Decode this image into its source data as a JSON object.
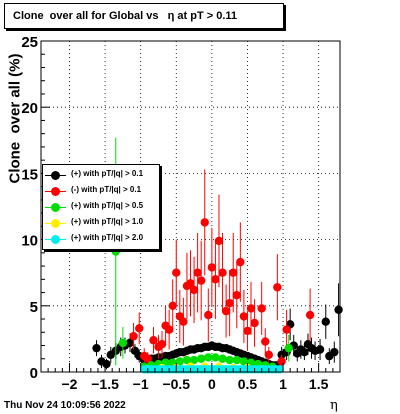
{
  "title": "Clone  over all for Global vs   η at pT > 0.11",
  "timestamp": "Thu Nov 24 10:09:56 2022",
  "chart_data": {
    "type": "scatter",
    "xlabel": "η",
    "ylabel": "Clone  over all (%)",
    "xlim": [
      -2.4,
      1.8
    ],
    "ylim": [
      0,
      25
    ],
    "xticks": [
      -2,
      -1.5,
      -1,
      -0.5,
      0,
      0.5,
      1,
      1.5
    ],
    "xtick_labels": [
      "−2",
      "−1.5",
      "−1",
      "−0.5",
      "0",
      "0.5",
      "1",
      "1.5"
    ],
    "yticks": [
      0,
      5,
      10,
      15,
      20,
      25
    ],
    "ytick_labels": [
      "0",
      "5",
      "10",
      "15",
      "20",
      "25"
    ],
    "grid": true,
    "legend_position": "left-middle",
    "series": [
      {
        "name": "(+) with pT/|q| > 0.1",
        "color": "#000000",
        "points": [
          {
            "x": -1.62,
            "y": 1.8,
            "err": 0.6
          },
          {
            "x": -1.55,
            "y": 0.8,
            "err": 0.5
          },
          {
            "x": -1.48,
            "y": 0.6,
            "err": 0.4
          },
          {
            "x": -1.42,
            "y": 1.3,
            "err": 0.6
          },
          {
            "x": -1.35,
            "y": 1.6,
            "err": 0.6
          },
          {
            "x": -1.28,
            "y": 1.9,
            "err": 0.7
          },
          {
            "x": -1.22,
            "y": 2.0,
            "err": 0.6
          },
          {
            "x": -1.15,
            "y": 2.2,
            "err": 0.7
          },
          {
            "x": -1.08,
            "y": 1.6,
            "err": 0.5
          },
          {
            "x": -1.02,
            "y": 1.2,
            "err": 0.5
          },
          {
            "x": -0.95,
            "y": 0.9,
            "err": 0.3
          },
          {
            "x": -0.9,
            "y": 0.9,
            "err": 0.3
          },
          {
            "x": -0.85,
            "y": 1.0,
            "err": 0.3
          },
          {
            "x": -0.8,
            "y": 1.0,
            "err": 0.3
          },
          {
            "x": -0.75,
            "y": 1.1,
            "err": 0.3
          },
          {
            "x": -0.7,
            "y": 1.1,
            "err": 0.3
          },
          {
            "x": -0.65,
            "y": 1.2,
            "err": 0.3
          },
          {
            "x": -0.6,
            "y": 1.2,
            "err": 0.3
          },
          {
            "x": -0.55,
            "y": 1.3,
            "err": 0.3
          },
          {
            "x": -0.5,
            "y": 1.4,
            "err": 0.3
          },
          {
            "x": -0.45,
            "y": 1.5,
            "err": 0.3
          },
          {
            "x": -0.4,
            "y": 1.5,
            "err": 0.3
          },
          {
            "x": -0.35,
            "y": 1.6,
            "err": 0.3
          },
          {
            "x": -0.3,
            "y": 1.7,
            "err": 0.3
          },
          {
            "x": -0.25,
            "y": 1.7,
            "err": 0.3
          },
          {
            "x": -0.2,
            "y": 1.8,
            "err": 0.3
          },
          {
            "x": -0.15,
            "y": 1.8,
            "err": 0.3
          },
          {
            "x": -0.1,
            "y": 1.9,
            "err": 0.3
          },
          {
            "x": -0.05,
            "y": 1.9,
            "err": 0.3
          },
          {
            "x": 0.0,
            "y": 2.0,
            "err": 0.3
          },
          {
            "x": 0.05,
            "y": 1.9,
            "err": 0.3
          },
          {
            "x": 0.1,
            "y": 1.9,
            "err": 0.3
          },
          {
            "x": 0.15,
            "y": 1.8,
            "err": 0.3
          },
          {
            "x": 0.2,
            "y": 1.8,
            "err": 0.3
          },
          {
            "x": 0.25,
            "y": 1.7,
            "err": 0.3
          },
          {
            "x": 0.3,
            "y": 1.6,
            "err": 0.3
          },
          {
            "x": 0.35,
            "y": 1.5,
            "err": 0.3
          },
          {
            "x": 0.4,
            "y": 1.4,
            "err": 0.3
          },
          {
            "x": 0.45,
            "y": 1.3,
            "err": 0.3
          },
          {
            "x": 0.5,
            "y": 1.2,
            "err": 0.3
          },
          {
            "x": 0.55,
            "y": 1.1,
            "err": 0.3
          },
          {
            "x": 0.6,
            "y": 1.0,
            "err": 0.3
          },
          {
            "x": 0.65,
            "y": 0.9,
            "err": 0.3
          },
          {
            "x": 0.7,
            "y": 0.8,
            "err": 0.3
          },
          {
            "x": 0.75,
            "y": 0.7,
            "err": 0.3
          },
          {
            "x": 0.8,
            "y": 0.6,
            "err": 0.3
          },
          {
            "x": 0.85,
            "y": 0.5,
            "err": 0.3
          },
          {
            "x": 0.9,
            "y": 0.5,
            "err": 0.3
          },
          {
            "x": 0.98,
            "y": 1.3,
            "err": 0.6
          },
          {
            "x": 1.05,
            "y": 1.5,
            "err": 0.6
          },
          {
            "x": 1.1,
            "y": 3.6,
            "err": 1.2
          },
          {
            "x": 1.15,
            "y": 2.0,
            "err": 0.8
          },
          {
            "x": 1.2,
            "y": 1.4,
            "err": 0.6
          },
          {
            "x": 1.25,
            "y": 1.7,
            "err": 0.7
          },
          {
            "x": 1.3,
            "y": 1.5,
            "err": 0.6
          },
          {
            "x": 1.35,
            "y": 2.1,
            "err": 0.8
          },
          {
            "x": 1.4,
            "y": 1.8,
            "err": 0.8
          },
          {
            "x": 1.45,
            "y": 1.6,
            "err": 0.7
          },
          {
            "x": 1.52,
            "y": 1.7,
            "err": 0.8
          },
          {
            "x": 1.6,
            "y": 3.8,
            "err": 1.3
          },
          {
            "x": 1.65,
            "y": 1.2,
            "err": 0.6
          },
          {
            "x": 1.72,
            "y": 1.5,
            "err": 0.8
          },
          {
            "x": 1.78,
            "y": 4.7,
            "err": 2.0
          }
        ]
      },
      {
        "name": "(-) with pT/|q| > 0.1",
        "color": "#ff0000",
        "points": [
          {
            "x": -1.1,
            "y": 2.7,
            "err": 1.0
          },
          {
            "x": -1.02,
            "y": 3.3,
            "err": 1.2
          },
          {
            "x": -0.95,
            "y": 1.2,
            "err": 0.6
          },
          {
            "x": -0.9,
            "y": 1.0,
            "err": 0.5
          },
          {
            "x": -0.82,
            "y": 2.4,
            "err": 1.0
          },
          {
            "x": -0.75,
            "y": 1.9,
            "err": 0.9
          },
          {
            "x": -0.7,
            "y": 2.1,
            "err": 1.0
          },
          {
            "x": -0.65,
            "y": 3.5,
            "err": 1.5
          },
          {
            "x": -0.6,
            "y": 3.2,
            "err": 1.5
          },
          {
            "x": -0.55,
            "y": 5.0,
            "err": 2.0
          },
          {
            "x": -0.5,
            "y": 7.5,
            "err": 2.5
          },
          {
            "x": -0.45,
            "y": 4.2,
            "err": 2.0
          },
          {
            "x": -0.4,
            "y": 3.8,
            "err": 1.8
          },
          {
            "x": -0.35,
            "y": 6.5,
            "err": 2.5
          },
          {
            "x": -0.3,
            "y": 6.7,
            "err": 2.5
          },
          {
            "x": -0.25,
            "y": 6.2,
            "err": 2.5
          },
          {
            "x": -0.2,
            "y": 7.5,
            "err": 3.0
          },
          {
            "x": -0.15,
            "y": 6.9,
            "err": 3.0
          },
          {
            "x": -0.1,
            "y": 11.3,
            "err": 4.0
          },
          {
            "x": -0.05,
            "y": 4.3,
            "err": 2.0
          },
          {
            "x": 0.0,
            "y": 7.9,
            "err": 3.0
          },
          {
            "x": 0.05,
            "y": 7.0,
            "err": 3.0
          },
          {
            "x": 0.1,
            "y": 9.9,
            "err": 3.5
          },
          {
            "x": 0.15,
            "y": 7.5,
            "err": 3.0
          },
          {
            "x": 0.2,
            "y": 4.6,
            "err": 2.0
          },
          {
            "x": 0.25,
            "y": 5.2,
            "err": 2.5
          },
          {
            "x": 0.3,
            "y": 7.5,
            "err": 3.0
          },
          {
            "x": 0.35,
            "y": 5.8,
            "err": 2.5
          },
          {
            "x": 0.4,
            "y": 8.3,
            "err": 3.0
          },
          {
            "x": 0.45,
            "y": 4.2,
            "err": 2.0
          },
          {
            "x": 0.5,
            "y": 3.1,
            "err": 1.5
          },
          {
            "x": 0.55,
            "y": 4.8,
            "err": 2.0
          },
          {
            "x": 0.6,
            "y": 3.7,
            "err": 1.8
          },
          {
            "x": 0.7,
            "y": 4.8,
            "err": 2.0
          },
          {
            "x": 0.75,
            "y": 2.3,
            "err": 1.0
          },
          {
            "x": 0.8,
            "y": 1.3,
            "err": 0.6
          },
          {
            "x": 0.92,
            "y": 6.4,
            "err": 2.5
          },
          {
            "x": 0.98,
            "y": 0.8,
            "err": 0.5
          },
          {
            "x": 1.05,
            "y": 3.2,
            "err": 1.5
          },
          {
            "x": 1.38,
            "y": 4.3,
            "err": 2.0
          }
        ]
      },
      {
        "name": "(+) with pT/|q| > 0.5",
        "color": "#00dd00",
        "points": [
          {
            "x": -1.35,
            "y": 9.1,
            "err": 8.6
          },
          {
            "x": -1.25,
            "y": 2.2,
            "err": 1.2
          },
          {
            "x": -0.95,
            "y": 0.4,
            "err": 0.2
          },
          {
            "x": -0.85,
            "y": 0.5,
            "err": 0.2
          },
          {
            "x": -0.75,
            "y": 0.6,
            "err": 0.2
          },
          {
            "x": -0.65,
            "y": 0.7,
            "err": 0.2
          },
          {
            "x": -0.55,
            "y": 0.7,
            "err": 0.2
          },
          {
            "x": -0.45,
            "y": 0.8,
            "err": 0.2
          },
          {
            "x": -0.35,
            "y": 0.9,
            "err": 0.2
          },
          {
            "x": -0.25,
            "y": 0.9,
            "err": 0.2
          },
          {
            "x": -0.15,
            "y": 1.0,
            "err": 0.2
          },
          {
            "x": -0.05,
            "y": 1.1,
            "err": 0.2
          },
          {
            "x": 0.05,
            "y": 1.1,
            "err": 0.2
          },
          {
            "x": 0.15,
            "y": 1.0,
            "err": 0.2
          },
          {
            "x": 0.25,
            "y": 0.9,
            "err": 0.2
          },
          {
            "x": 0.35,
            "y": 0.9,
            "err": 0.2
          },
          {
            "x": 0.45,
            "y": 0.8,
            "err": 0.2
          },
          {
            "x": 0.55,
            "y": 0.7,
            "err": 0.2
          },
          {
            "x": 0.65,
            "y": 0.6,
            "err": 0.2
          },
          {
            "x": 0.75,
            "y": 0.5,
            "err": 0.2
          },
          {
            "x": 0.85,
            "y": 0.4,
            "err": 0.2
          },
          {
            "x": 1.08,
            "y": 1.8,
            "err": 1.0
          }
        ]
      },
      {
        "name": "(+) with pT/|q| > 1.0",
        "color": "#ffee00",
        "points": [
          {
            "x": -0.9,
            "y": 0.2,
            "err": 0.1
          },
          {
            "x": -0.7,
            "y": 0.3,
            "err": 0.1
          },
          {
            "x": -0.5,
            "y": 0.3,
            "err": 0.1
          },
          {
            "x": -0.3,
            "y": 0.4,
            "err": 0.1
          },
          {
            "x": -0.1,
            "y": 0.4,
            "err": 0.1
          },
          {
            "x": 0.1,
            "y": 0.4,
            "err": 0.1
          },
          {
            "x": 0.3,
            "y": 0.3,
            "err": 0.1
          },
          {
            "x": 0.5,
            "y": 0.3,
            "err": 0.1
          },
          {
            "x": 0.7,
            "y": 0.2,
            "err": 0.1
          }
        ]
      },
      {
        "name": "(+) with pT/|q| > 2.0",
        "color": "#00eeee",
        "points": [
          {
            "x": -0.95,
            "y": 0.2,
            "err": 0.1
          },
          {
            "x": -0.9,
            "y": 0.2,
            "err": 0.1
          },
          {
            "x": -0.85,
            "y": 0.2,
            "err": 0.1
          },
          {
            "x": -0.8,
            "y": 0.2,
            "err": 0.1
          },
          {
            "x": -0.75,
            "y": 0.2,
            "err": 0.1
          },
          {
            "x": -0.7,
            "y": 0.2,
            "err": 0.1
          },
          {
            "x": -0.65,
            "y": 0.2,
            "err": 0.1
          },
          {
            "x": -0.6,
            "y": 0.2,
            "err": 0.1
          },
          {
            "x": -0.55,
            "y": 0.2,
            "err": 0.1
          },
          {
            "x": -0.5,
            "y": 0.2,
            "err": 0.1
          },
          {
            "x": -0.45,
            "y": 0.2,
            "err": 0.1
          },
          {
            "x": -0.4,
            "y": 0.2,
            "err": 0.1
          },
          {
            "x": -0.35,
            "y": 0.2,
            "err": 0.1
          },
          {
            "x": -0.3,
            "y": 0.2,
            "err": 0.1
          },
          {
            "x": -0.25,
            "y": 0.2,
            "err": 0.1
          },
          {
            "x": -0.2,
            "y": 0.2,
            "err": 0.1
          },
          {
            "x": -0.15,
            "y": 0.2,
            "err": 0.1
          },
          {
            "x": -0.1,
            "y": 0.2,
            "err": 0.1
          },
          {
            "x": -0.05,
            "y": 0.2,
            "err": 0.1
          },
          {
            "x": 0.0,
            "y": 0.2,
            "err": 0.1
          },
          {
            "x": 0.05,
            "y": 0.2,
            "err": 0.1
          },
          {
            "x": 0.1,
            "y": 0.2,
            "err": 0.1
          },
          {
            "x": 0.15,
            "y": 0.2,
            "err": 0.1
          },
          {
            "x": 0.2,
            "y": 0.2,
            "err": 0.1
          },
          {
            "x": 0.25,
            "y": 0.2,
            "err": 0.1
          },
          {
            "x": 0.3,
            "y": 0.2,
            "err": 0.1
          },
          {
            "x": 0.35,
            "y": 0.2,
            "err": 0.1
          },
          {
            "x": 0.4,
            "y": 0.2,
            "err": 0.1
          },
          {
            "x": 0.45,
            "y": 0.2,
            "err": 0.1
          },
          {
            "x": 0.5,
            "y": 0.2,
            "err": 0.1
          },
          {
            "x": 0.55,
            "y": 0.2,
            "err": 0.1
          },
          {
            "x": 0.6,
            "y": 0.2,
            "err": 0.1
          },
          {
            "x": 0.65,
            "y": 0.2,
            "err": 0.1
          },
          {
            "x": 0.7,
            "y": 0.2,
            "err": 0.1
          },
          {
            "x": 0.75,
            "y": 0.2,
            "err": 0.1
          },
          {
            "x": 0.8,
            "y": 0.2,
            "err": 0.1
          },
          {
            "x": 0.85,
            "y": 0.2,
            "err": 0.1
          },
          {
            "x": 0.9,
            "y": 0.2,
            "err": 0.1
          },
          {
            "x": 0.95,
            "y": 0.2,
            "err": 0.1
          }
        ]
      }
    ]
  }
}
